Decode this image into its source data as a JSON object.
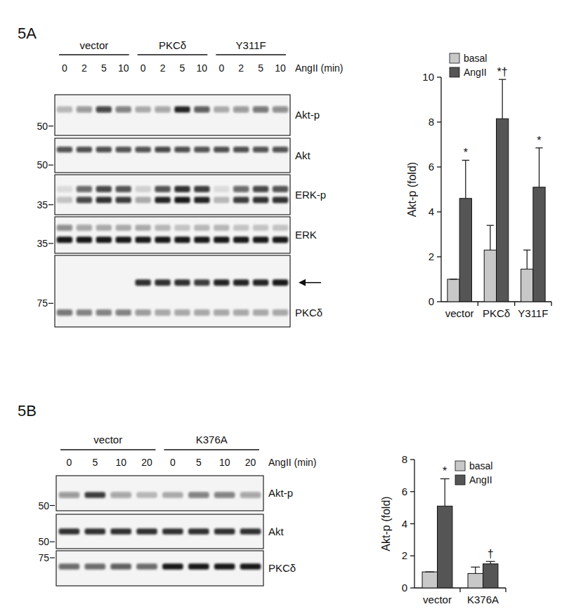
{
  "blots": [
    {
      "panel": "5A",
      "groups": [
        "vector",
        "PKCδ",
        "Y311F"
      ],
      "times": [
        0,
        2,
        5,
        10
      ],
      "time_label": "AngII (min)",
      "rows": [
        {
          "label": "Akt-p",
          "mw": 50,
          "bands": [
            [
              0.25,
              0.4,
              0.75,
              0.5,
              0.3,
              0.35,
              0.9,
              0.65,
              0.3,
              0.4,
              0.55,
              0.45
            ]
          ]
        },
        {
          "label": "Akt",
          "mw": 50,
          "bands": [
            [
              0.7,
              0.72,
              0.72,
              0.7,
              0.7,
              0.75,
              0.72,
              0.7,
              0.72,
              0.72,
              0.7,
              0.7
            ]
          ]
        },
        {
          "label": "ERK-p",
          "mw": 35,
          "bands": [
            [
              0.1,
              0.6,
              0.75,
              0.7,
              0.15,
              0.7,
              0.85,
              0.8,
              0.1,
              0.6,
              0.75,
              0.7
            ],
            [
              0.2,
              0.75,
              0.85,
              0.8,
              0.3,
              0.9,
              0.95,
              0.9,
              0.25,
              0.8,
              0.85,
              0.85
            ]
          ]
        },
        {
          "label": "ERK",
          "mw": 35,
          "bands": [
            [
              0.45,
              0.35,
              0.3,
              0.3,
              0.3,
              0.25,
              0.2,
              0.25,
              0.25,
              0.2,
              0.2,
              0.2
            ],
            [
              0.95,
              0.95,
              0.95,
              0.95,
              0.95,
              0.95,
              0.95,
              0.95,
              0.95,
              0.95,
              0.95,
              0.95
            ]
          ]
        },
        {
          "label": "PKCδ",
          "mw": 75,
          "bands": [
            [
              0,
              0,
              0,
              0,
              0.85,
              0.85,
              0.85,
              0.8,
              0.9,
              0.9,
              0.9,
              0.95
            ],
            [
              0.55,
              0.5,
              0.5,
              0.5,
              0.4,
              0.35,
              0.35,
              0.35,
              0.35,
              0.35,
              0.35,
              0.35
            ]
          ]
        }
      ]
    },
    {
      "panel": "5B",
      "groups": [
        "vector",
        "K376A"
      ],
      "times": [
        0,
        5,
        10,
        20
      ],
      "time_label": "AngII (min)",
      "rows": [
        {
          "label": "Akt-p",
          "mw": 50,
          "bands": [
            [
              0.4,
              0.8,
              0.35,
              0.25,
              0.3,
              0.5,
              0.5,
              0.35
            ]
          ]
        },
        {
          "label": "Akt",
          "mw": 50,
          "bands": [
            [
              0.85,
              0.85,
              0.85,
              0.85,
              0.85,
              0.85,
              0.85,
              0.85
            ]
          ]
        },
        {
          "label": "PKCδ",
          "mw": 75,
          "bands": [
            [
              0.6,
              0.6,
              0.65,
              0.6,
              0.95,
              0.95,
              0.95,
              0.95
            ]
          ]
        }
      ]
    }
  ],
  "chart_data": [
    {
      "type": "bar",
      "ylabel": "Akt-p (fold)",
      "categories": [
        "vector",
        "PKCδ",
        "Y311F"
      ],
      "series": [
        {
          "name": "basal",
          "color": "#c8c8c8",
          "values": [
            1,
            2.3,
            1.45
          ],
          "error": [
            0,
            1.1,
            0.85
          ]
        },
        {
          "name": "AngII",
          "color": "#555555",
          "values": [
            4.6,
            8.15,
            5.1
          ],
          "error": [
            1.7,
            1.75,
            1.75
          ],
          "annotations": [
            "*",
            "*†",
            "*"
          ]
        }
      ],
      "ylim": [
        0,
        10
      ],
      "yticks": [
        0,
        2,
        4,
        6,
        8,
        10
      ],
      "legend": "top-left"
    },
    {
      "type": "bar",
      "ylabel": "Akt-p (fold)",
      "categories": [
        "vector",
        "K376A"
      ],
      "series": [
        {
          "name": "basal",
          "color": "#c8c8c8",
          "values": [
            1,
            0.9
          ],
          "error": [
            0,
            0.4
          ]
        },
        {
          "name": "AngII",
          "color": "#555555",
          "values": [
            5.1,
            1.5
          ],
          "error": [
            1.7,
            0.15
          ],
          "annotations": [
            "*",
            "†"
          ]
        }
      ],
      "ylim": [
        0,
        8
      ],
      "yticks": [
        0,
        2,
        4,
        6,
        8
      ],
      "legend": "top-right"
    }
  ]
}
